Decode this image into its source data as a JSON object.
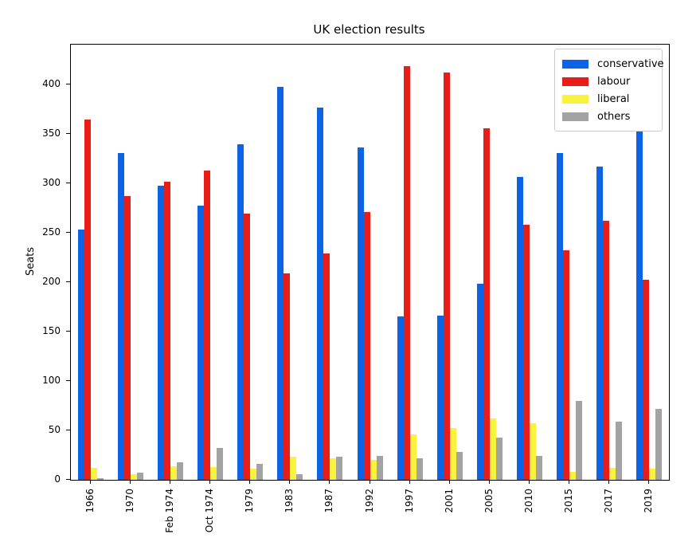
{
  "chart_data": {
    "type": "bar",
    "title": "UK election results",
    "xlabel": "",
    "ylabel": "Seats",
    "categories": [
      "1966",
      "1970",
      "Feb 1974",
      "Oct 1974",
      "1979",
      "1983",
      "1987",
      "1992",
      "1997",
      "2001",
      "2005",
      "2010",
      "2015",
      "2017",
      "2019"
    ],
    "series": [
      {
        "name": "conservative",
        "color": "#0d63e6",
        "values": [
          253,
          330,
          297,
          277,
          339,
          397,
          376,
          336,
          165,
          166,
          198,
          306,
          330,
          317,
          363
        ]
      },
      {
        "name": "labour",
        "color": "#e91d18",
        "values": [
          364,
          287,
          301,
          313,
          269,
          209,
          229,
          271,
          418,
          412,
          355,
          258,
          232,
          262,
          202
        ]
      },
      {
        "name": "liberal",
        "color": "#f9f33e",
        "values": [
          12,
          6,
          14,
          13,
          11,
          23,
          22,
          20,
          46,
          52,
          62,
          57,
          8,
          12,
          11
        ]
      },
      {
        "name": "others",
        "color": "#a3a3a3",
        "values": [
          2,
          7,
          18,
          32,
          16,
          6,
          23,
          24,
          22,
          28,
          43,
          24,
          80,
          59,
          72
        ]
      }
    ],
    "yticks": [
      0,
      50,
      100,
      150,
      200,
      250,
      300,
      350,
      400
    ],
    "ylim": [
      0,
      440
    ],
    "grid": false,
    "legend_position": "upper right",
    "x_tick_label_rotation": 90
  }
}
